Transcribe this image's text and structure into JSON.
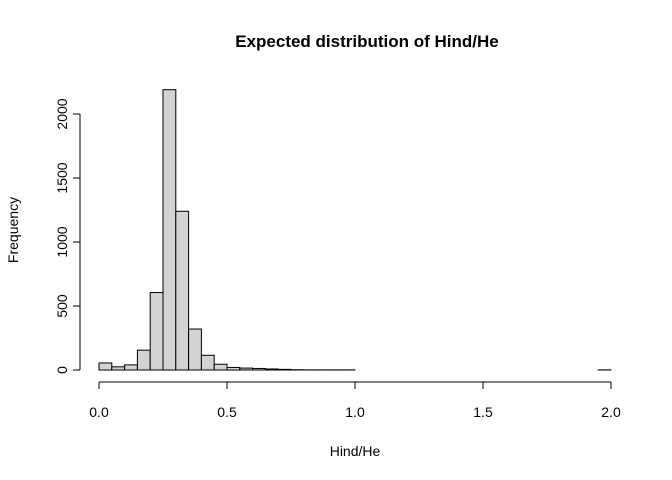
{
  "chart_data": {
    "type": "bar",
    "title": "Expected distribution of Hind/He",
    "xlabel": "Hind/He",
    "ylabel": "Frequency",
    "xlim": [
      0,
      2.0
    ],
    "ylim": [
      0,
      2200
    ],
    "x_ticks": [
      "0.0",
      "0.5",
      "1.0",
      "1.5",
      "2.0"
    ],
    "x_tick_values": [
      0,
      0.5,
      1.0,
      1.5,
      2.0
    ],
    "y_ticks": [
      "0",
      "500",
      "1000",
      "1500",
      "2000"
    ],
    "y_tick_values": [
      0,
      500,
      1000,
      1500,
      2000
    ],
    "bin_width": 0.05,
    "bin_starts": [
      0.0,
      0.05,
      0.1,
      0.15,
      0.2,
      0.25,
      0.3,
      0.35,
      0.4,
      0.45,
      0.5,
      0.55,
      0.6,
      0.65,
      0.7,
      0.75,
      0.8,
      0.85,
      0.9,
      0.95,
      1.0,
      1.05,
      1.1,
      1.15,
      1.2,
      1.25,
      1.3,
      1.35,
      1.4,
      1.45,
      1.5,
      1.55,
      1.6,
      1.65,
      1.7,
      1.75,
      1.8,
      1.85,
      1.9,
      1.95
    ],
    "values": [
      55,
      25,
      40,
      155,
      605,
      2190,
      1240,
      320,
      115,
      45,
      20,
      15,
      12,
      8,
      5,
      2,
      1,
      1,
      1,
      1,
      0,
      0,
      0,
      0,
      0,
      0,
      0,
      0,
      0,
      0,
      0,
      0,
      0,
      0,
      0,
      0,
      0,
      0,
      0,
      1
    ],
    "bar_color": "#d3d3d3",
    "border_color": "#000000",
    "grid": false,
    "legend": "none"
  }
}
